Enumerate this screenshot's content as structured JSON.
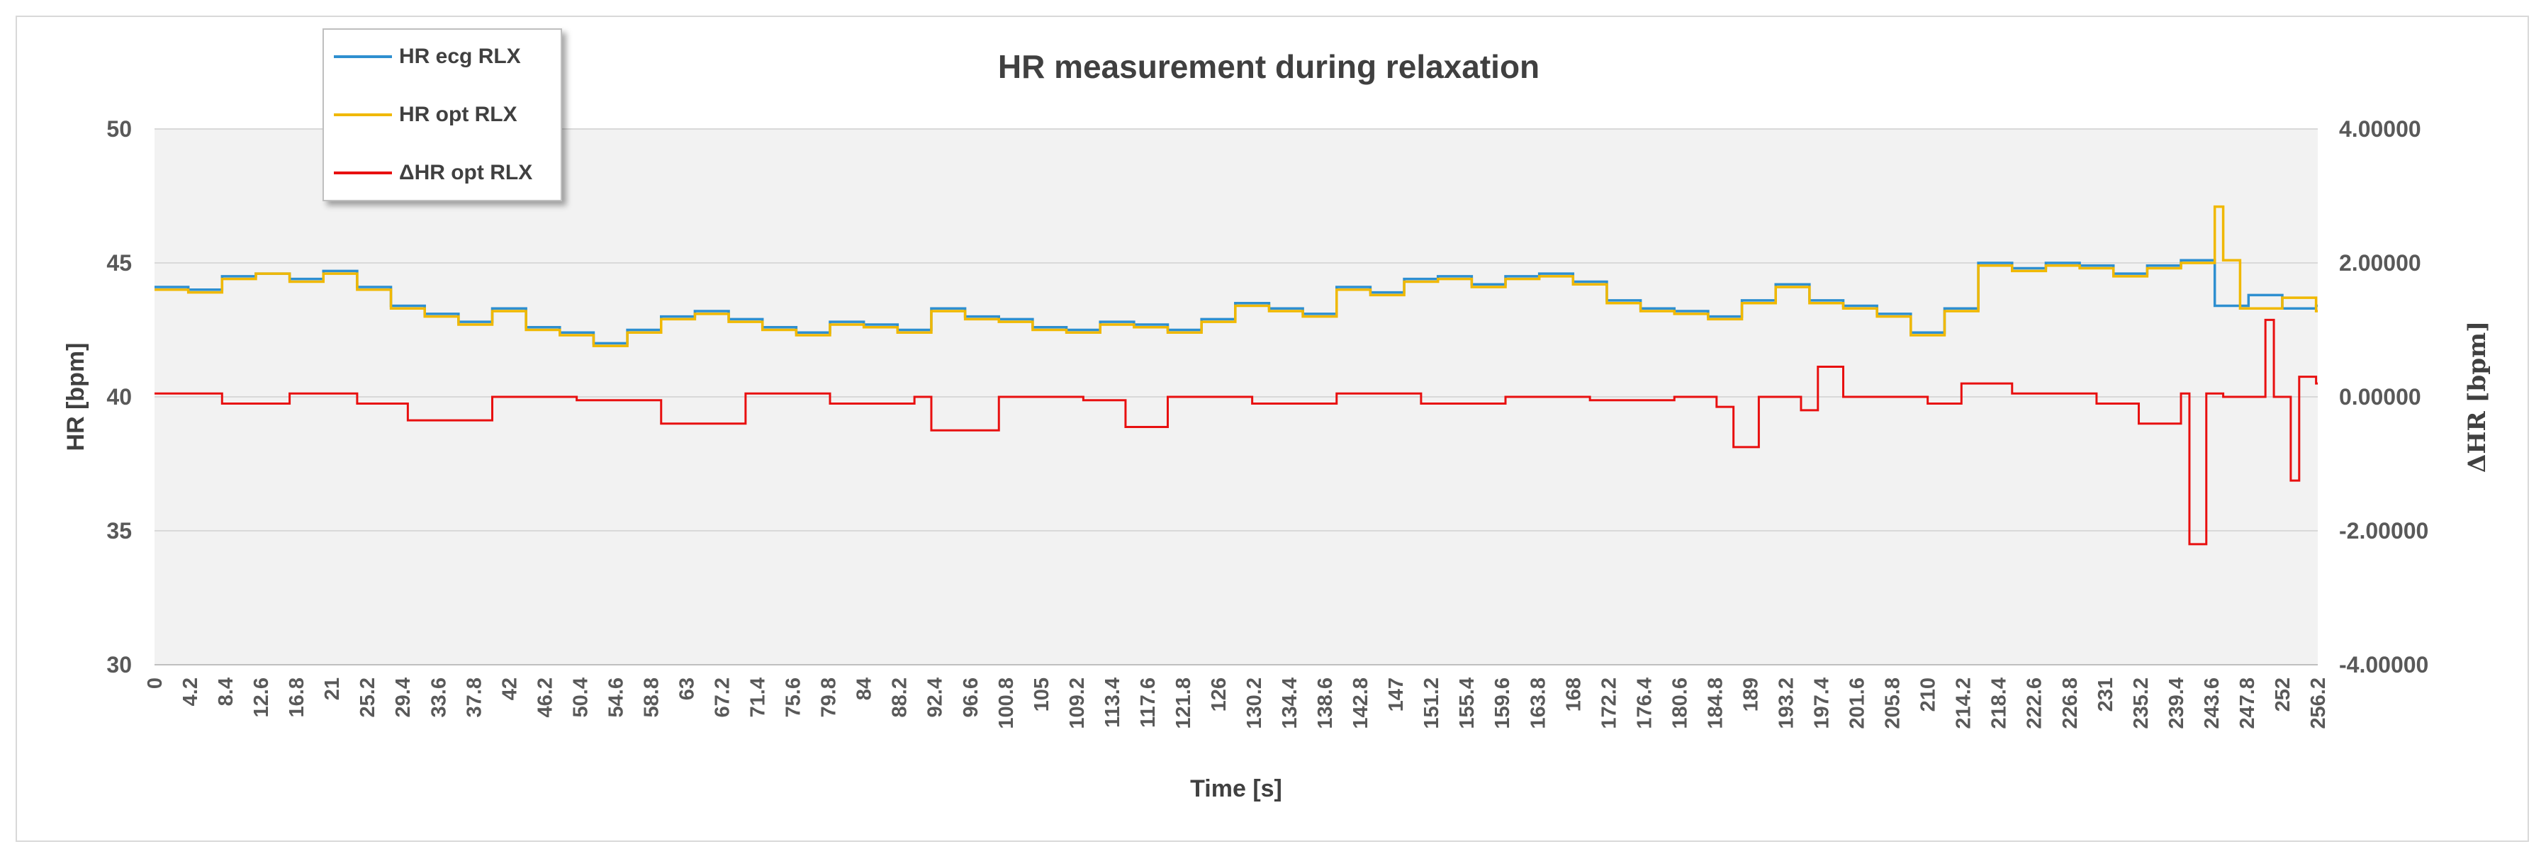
{
  "chart_data": {
    "type": "line",
    "title": "HR measurement during relaxation",
    "xlabel": "Time [s]",
    "ylabel_left": "HR [bpm]",
    "ylabel_right": "ΔHR [bpm]",
    "ylim_left": [
      30,
      50
    ],
    "yticks_left": [
      "30",
      "35",
      "40",
      "45",
      "50"
    ],
    "ylim_right": [
      -4,
      4
    ],
    "yticks_right": [
      "-4.00000",
      "-2.00000",
      "0.00000",
      "2.00000",
      "4.00000"
    ],
    "xlim": [
      0,
      256.2
    ],
    "xtick_labels": [
      "0",
      "4.2",
      "8.4",
      "12.6",
      "16.8",
      "21",
      "25.2",
      "29.4",
      "33.6",
      "37.8",
      "42",
      "46.2",
      "50.4",
      "54.6",
      "58.8",
      "63",
      "67.2",
      "71.4",
      "75.6",
      "79.8",
      "84",
      "88.2",
      "92.4",
      "96.6",
      "100.8",
      "105",
      "109.2",
      "113.4",
      "117.6",
      "121.8",
      "126",
      "130.2",
      "134.4",
      "138.6",
      "142.8",
      "147",
      "151.2",
      "155.4",
      "159.6",
      "163.8",
      "168",
      "172.2",
      "176.4",
      "180.6",
      "184.8",
      "189",
      "193.2",
      "197.4",
      "201.6",
      "205.8",
      "210",
      "214.2",
      "218.4",
      "222.6",
      "226.8",
      "231",
      "235.2",
      "239.4",
      "243.6",
      "247.8",
      "252",
      "256.2"
    ],
    "grid": true,
    "legend_position": "top-left",
    "series": [
      {
        "name": "HR ecg  RLX",
        "axis": "left",
        "color": "#2e8fd0",
        "x": [
          0,
          4,
          8,
          12,
          16,
          20,
          24,
          28,
          32,
          36,
          40,
          44,
          48,
          52,
          56,
          60,
          64,
          68,
          72,
          76,
          80,
          84,
          88,
          92,
          96,
          100,
          104,
          108,
          112,
          116,
          120,
          124,
          128,
          132,
          136,
          140,
          144,
          148,
          152,
          156,
          160,
          164,
          168,
          172,
          176,
          180,
          184,
          188,
          192,
          196,
          200,
          204,
          208,
          212,
          216,
          220,
          224,
          228,
          232,
          236,
          240,
          244,
          248,
          252,
          256
        ],
        "values": [
          44.1,
          44.0,
          44.5,
          44.6,
          44.4,
          44.7,
          44.1,
          43.4,
          43.1,
          42.8,
          43.3,
          42.6,
          42.4,
          42.0,
          42.5,
          43.0,
          43.2,
          42.9,
          42.6,
          42.4,
          42.8,
          42.7,
          42.5,
          43.3,
          43.0,
          42.9,
          42.6,
          42.5,
          42.8,
          42.7,
          42.5,
          42.9,
          43.5,
          43.3,
          43.1,
          44.1,
          43.9,
          44.4,
          44.5,
          44.2,
          44.5,
          44.6,
          44.3,
          43.6,
          43.3,
          43.2,
          43.0,
          43.6,
          44.2,
          43.6,
          43.4,
          43.1,
          42.4,
          43.3,
          45.0,
          44.8,
          45.0,
          44.9,
          44.6,
          44.9,
          45.1,
          43.4,
          43.8,
          43.3,
          43.4
        ]
      },
      {
        "name": "HR opt RLX",
        "axis": "left",
        "color": "#f0b800",
        "x": [
          0,
          4,
          8,
          12,
          16,
          20,
          24,
          28,
          32,
          36,
          40,
          44,
          48,
          52,
          56,
          60,
          64,
          68,
          72,
          76,
          80,
          84,
          88,
          92,
          96,
          100,
          104,
          108,
          112,
          116,
          120,
          124,
          128,
          132,
          136,
          140,
          144,
          148,
          152,
          156,
          160,
          164,
          168,
          172,
          176,
          180,
          184,
          188,
          192,
          196,
          200,
          204,
          208,
          212,
          216,
          220,
          224,
          228,
          232,
          236,
          240,
          244,
          245,
          247,
          252,
          256
        ],
        "values": [
          44.0,
          43.9,
          44.4,
          44.6,
          44.3,
          44.6,
          44.0,
          43.3,
          43.0,
          42.7,
          43.2,
          42.5,
          42.3,
          41.9,
          42.4,
          42.9,
          43.1,
          42.8,
          42.5,
          42.3,
          42.7,
          42.6,
          42.4,
          43.2,
          42.9,
          42.8,
          42.5,
          42.4,
          42.7,
          42.6,
          42.4,
          42.8,
          43.4,
          43.2,
          43.0,
          44.0,
          43.8,
          44.3,
          44.4,
          44.1,
          44.4,
          44.5,
          44.2,
          43.5,
          43.2,
          43.1,
          42.9,
          43.5,
          44.1,
          43.5,
          43.3,
          43.0,
          42.3,
          43.2,
          44.9,
          44.7,
          44.9,
          44.8,
          44.5,
          44.8,
          45.0,
          47.1,
          45.1,
          43.3,
          43.7,
          43.2
        ]
      },
      {
        "name": "ΔHR opt RLX",
        "axis": "right",
        "color": "#e81010",
        "x": [
          0,
          8,
          16,
          24,
          30,
          40,
          50,
          60,
          70,
          80,
          90,
          92,
          100,
          110,
          115,
          120,
          130,
          140,
          150,
          160,
          170,
          180,
          185,
          187,
          190,
          195,
          197,
          200,
          210,
          214,
          220,
          230,
          235,
          240,
          241,
          243,
          245,
          250,
          251,
          253,
          254,
          256
        ],
        "values": [
          0.05,
          -0.1,
          0.05,
          -0.1,
          -0.35,
          0.0,
          -0.05,
          -0.4,
          0.05,
          -0.1,
          0.0,
          -0.5,
          0.0,
          -0.05,
          -0.45,
          0.0,
          -0.1,
          0.05,
          -0.1,
          0.0,
          -0.05,
          0.0,
          -0.15,
          -0.75,
          0.0,
          -0.2,
          0.45,
          0.0,
          -0.1,
          0.2,
          0.05,
          -0.1,
          -0.4,
          0.05,
          -2.2,
          0.05,
          0.0,
          1.15,
          0.0,
          -1.25,
          0.3,
          0.2
        ]
      }
    ]
  }
}
